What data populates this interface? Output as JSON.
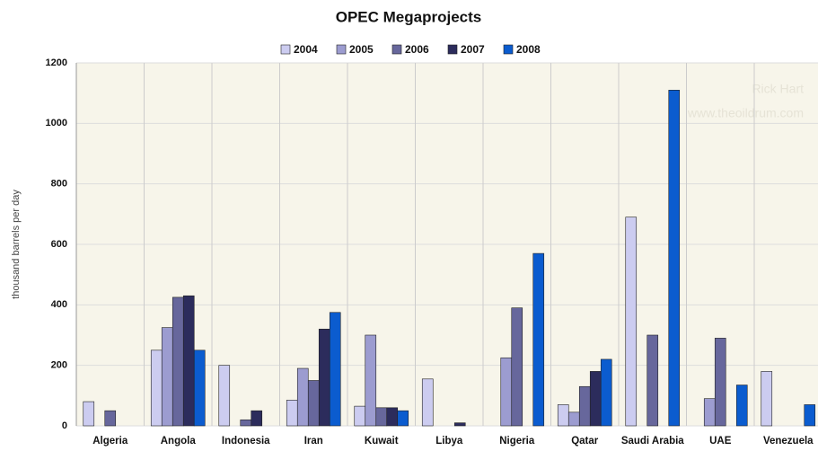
{
  "chart_data": {
    "type": "bar",
    "title": "OPEC Megaprojects",
    "y_label": "thousand barrels per day",
    "watermark": [
      "Rick Hart",
      "www.theoildrum.com"
    ],
    "categories": [
      "Algeria",
      "Angola",
      "Indonesia",
      "Iran",
      "Kuwait",
      "Libya",
      "Nigeria",
      "Qatar",
      "Saudi Arabia",
      "UAE",
      "Venezuela"
    ],
    "series": [
      {
        "name": "2004",
        "color": "#ccccf0",
        "values": [
          80,
          250,
          200,
          85,
          65,
          155,
          null,
          70,
          690,
          null,
          180
        ]
      },
      {
        "name": "2005",
        "color": "#9c9cd0",
        "values": [
          null,
          325,
          null,
          190,
          300,
          null,
          225,
          45,
          null,
          90,
          null
        ]
      },
      {
        "name": "2006",
        "color": "#67679c",
        "values": [
          50,
          425,
          20,
          150,
          60,
          null,
          390,
          130,
          300,
          290,
          null
        ]
      },
      {
        "name": "2007",
        "color": "#2c2c5c",
        "values": [
          null,
          430,
          50,
          320,
          60,
          10,
          null,
          180,
          null,
          null,
          null
        ]
      },
      {
        "name": "2008",
        "color": "#0b5ccf",
        "values": [
          null,
          250,
          null,
          375,
          50,
          null,
          570,
          220,
          1110,
          135,
          70
        ]
      }
    ],
    "ylim": [
      0,
      1200
    ],
    "yticks": [
      0,
      200,
      400,
      600,
      800,
      1000,
      1200
    ],
    "grid": true
  }
}
